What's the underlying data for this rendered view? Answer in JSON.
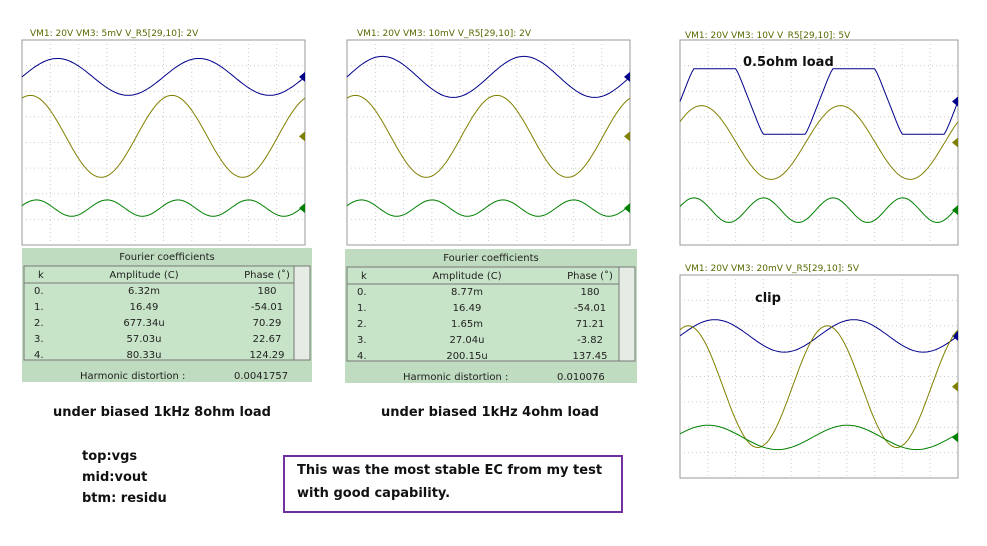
{
  "panels": [
    {
      "header": "VM1: 20V   VM3: 5mV   V_R5[29,10]: 2V",
      "table": {
        "title": "Fourier coefficients",
        "columns": [
          "k",
          "Amplitude (C)",
          "Phase (˚)"
        ],
        "rows": [
          [
            "0.",
            "6.32m",
            "180"
          ],
          [
            "1.",
            "16.49",
            "-54.01"
          ],
          [
            "2.",
            "677.34u",
            "70.29"
          ],
          [
            "3.",
            "57.03u",
            "22.67"
          ],
          [
            "4.",
            "80.33u",
            "124.29"
          ]
        ],
        "footer_label": "Harmonic distortion :",
        "footer_value": "0.0041757"
      }
    },
    {
      "header": "VM1: 20V   VM3: 10mV   V_R5[29,10]: 2V",
      "table": {
        "title": "Fourier coefficients",
        "columns": [
          "k",
          "Amplitude (C)",
          "Phase (˚)"
        ],
        "rows": [
          [
            "0.",
            "8.77m",
            "180"
          ],
          [
            "1.",
            "16.49",
            "-54.01"
          ],
          [
            "2.",
            "1.65m",
            "71.21"
          ],
          [
            "3.",
            "27.04u",
            "-3.82"
          ],
          [
            "4.",
            "200.15u",
            "137.45"
          ]
        ],
        "footer_label": "Harmonic distortion :",
        "footer_value": "0.010076"
      }
    },
    {
      "header": "VM1: 20V   VM3: 10V   V_R5[29,10]: 5V",
      "label": "0.5ohm load"
    },
    {
      "header": "VM1: 20V   VM3: 20mV   V_R5[29,10]: 5V",
      "label": "clip"
    }
  ],
  "captions": [
    "under biased 1kHz 8ohm load",
    "under biased 1kHz 4ohm load"
  ],
  "legend": [
    "top:vgs",
    "mid:vout",
    "btm: residu"
  ],
  "note": [
    "This was the most stable EC from my test",
    "with good capability."
  ]
}
